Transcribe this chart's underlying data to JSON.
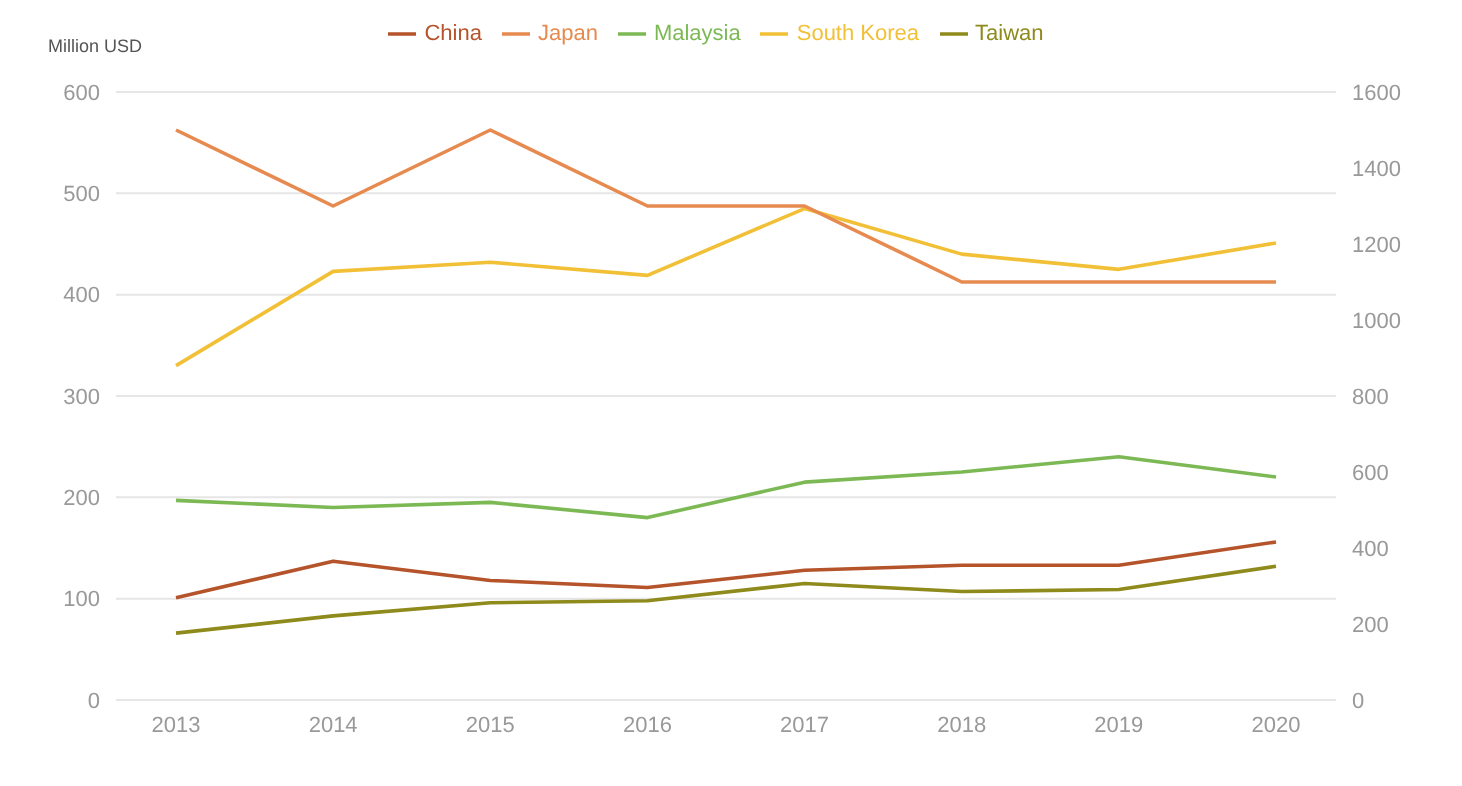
{
  "chart_data": {
    "type": "line",
    "ylabel": "Million USD",
    "categories": [
      "2013",
      "2014",
      "2015",
      "2016",
      "2017",
      "2018",
      "2019",
      "2020"
    ],
    "series": [
      {
        "name": "South Korea",
        "color": "#f2c037",
        "values": [
          330,
          423,
          432,
          419,
          485,
          440,
          425,
          451
        ]
      },
      {
        "name": "Malaysia",
        "color": "#7cb955",
        "values": [
          197,
          190,
          195,
          180,
          215,
          225,
          240,
          220
        ]
      },
      {
        "name": "China",
        "color": "#b5532a",
        "values": [
          101,
          137,
          118,
          111,
          128,
          133,
          133,
          156
        ]
      },
      {
        "name": "Taiwan",
        "color": "#8f8a1c",
        "values": [
          66,
          83,
          96,
          98,
          115,
          107,
          109,
          132
        ]
      },
      {
        "name": "Japan",
        "color": "#e68a4f",
        "axis": "y2",
        "values": [
          1500,
          1300,
          1500,
          1300,
          1300,
          1100,
          1100,
          1100
        ]
      }
    ],
    "ylim": [
      0,
      600
    ],
    "yticks": [
      0,
      100,
      200,
      300,
      400,
      500,
      600
    ],
    "y2lim": [
      0,
      1600
    ],
    "y2ticks": [
      0,
      200,
      400,
      600,
      800,
      1000,
      1200,
      1400,
      1600
    ],
    "grid": "y",
    "legend": "top",
    "marker": "none",
    "line_style": "solid"
  }
}
